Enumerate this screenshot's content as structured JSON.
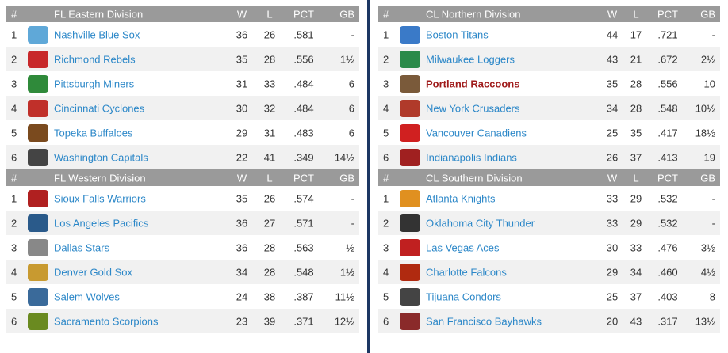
{
  "columns": {
    "rank": "#",
    "w": "W",
    "l": "L",
    "pct": "PCT",
    "gb": "GB"
  },
  "left": [
    {
      "division": "FL Eastern Division",
      "teams": [
        {
          "rank": "1",
          "name": "Nashville Blue Sox",
          "w": "36",
          "l": "26",
          "pct": ".581",
          "gb": "-",
          "logo_color": "#5fa8d8"
        },
        {
          "rank": "2",
          "name": "Richmond Rebels",
          "w": "35",
          "l": "28",
          "pct": ".556",
          "gb": "1½",
          "logo_color": "#c8282a"
        },
        {
          "rank": "3",
          "name": "Pittsburgh Miners",
          "w": "31",
          "l": "33",
          "pct": ".484",
          "gb": "6",
          "logo_color": "#2f8a3a"
        },
        {
          "rank": "4",
          "name": "Cincinnati Cyclones",
          "w": "30",
          "l": "32",
          "pct": ".484",
          "gb": "6",
          "logo_color": "#c0302a"
        },
        {
          "rank": "5",
          "name": "Topeka Buffaloes",
          "w": "29",
          "l": "31",
          "pct": ".483",
          "gb": "6",
          "logo_color": "#7a4a1e"
        },
        {
          "rank": "6",
          "name": "Washington Capitals",
          "w": "22",
          "l": "41",
          "pct": ".349",
          "gb": "14½",
          "logo_color": "#444444"
        }
      ]
    },
    {
      "division": "FL Western Division",
      "teams": [
        {
          "rank": "1",
          "name": "Sioux Falls Warriors",
          "w": "35",
          "l": "26",
          "pct": ".574",
          "gb": "-",
          "logo_color": "#b02020"
        },
        {
          "rank": "2",
          "name": "Los Angeles Pacifics",
          "w": "36",
          "l": "27",
          "pct": ".571",
          "gb": "-",
          "logo_color": "#2a5a8a"
        },
        {
          "rank": "3",
          "name": "Dallas Stars",
          "w": "36",
          "l": "28",
          "pct": ".563",
          "gb": "½",
          "logo_color": "#888888"
        },
        {
          "rank": "4",
          "name": "Denver Gold Sox",
          "w": "34",
          "l": "28",
          "pct": ".548",
          "gb": "1½",
          "logo_color": "#c89a30"
        },
        {
          "rank": "5",
          "name": "Salem Wolves",
          "w": "24",
          "l": "38",
          "pct": ".387",
          "gb": "11½",
          "logo_color": "#3a6a9a"
        },
        {
          "rank": "6",
          "name": "Sacramento Scorpions",
          "w": "23",
          "l": "39",
          "pct": ".371",
          "gb": "12½",
          "logo_color": "#6a8a20"
        }
      ]
    }
  ],
  "right": [
    {
      "division": "CL Northern Division",
      "teams": [
        {
          "rank": "1",
          "name": "Boston Titans",
          "w": "44",
          "l": "17",
          "pct": ".721",
          "gb": "-",
          "logo_color": "#3a7ac8",
          "highlight": false
        },
        {
          "rank": "2",
          "name": "Milwaukee Loggers",
          "w": "43",
          "l": "21",
          "pct": ".672",
          "gb": "2½",
          "logo_color": "#2a8a4a",
          "highlight": false
        },
        {
          "rank": "3",
          "name": "Portland Raccoons",
          "w": "35",
          "l": "28",
          "pct": ".556",
          "gb": "10",
          "logo_color": "#7a5a3a",
          "highlight": true
        },
        {
          "rank": "4",
          "name": "New York Crusaders",
          "w": "34",
          "l": "28",
          "pct": ".548",
          "gb": "10½",
          "logo_color": "#b03a2a",
          "highlight": false
        },
        {
          "rank": "5",
          "name": "Vancouver Canadiens",
          "w": "25",
          "l": "35",
          "pct": ".417",
          "gb": "18½",
          "logo_color": "#d02020",
          "highlight": false
        },
        {
          "rank": "6",
          "name": "Indianapolis Indians",
          "w": "26",
          "l": "37",
          "pct": ".413",
          "gb": "19",
          "logo_color": "#a02020",
          "highlight": false
        }
      ]
    },
    {
      "division": "CL Southern Division",
      "teams": [
        {
          "rank": "1",
          "name": "Atlanta Knights",
          "w": "33",
          "l": "29",
          "pct": ".532",
          "gb": "-",
          "logo_color": "#e09020",
          "highlight": false
        },
        {
          "rank": "2",
          "name": "Oklahoma City Thunder",
          "w": "33",
          "l": "29",
          "pct": ".532",
          "gb": "-",
          "logo_color": "#333333",
          "highlight": false
        },
        {
          "rank": "3",
          "name": "Las Vegas Aces",
          "w": "30",
          "l": "33",
          "pct": ".476",
          "gb": "3½",
          "logo_color": "#c02020",
          "highlight": false
        },
        {
          "rank": "4",
          "name": "Charlotte Falcons",
          "w": "29",
          "l": "34",
          "pct": ".460",
          "gb": "4½",
          "logo_color": "#b02a10",
          "highlight": false
        },
        {
          "rank": "5",
          "name": "Tijuana Condors",
          "w": "25",
          "l": "37",
          "pct": ".403",
          "gb": "8",
          "logo_color": "#444444",
          "highlight": false
        },
        {
          "rank": "6",
          "name": "San Francisco Bayhawks",
          "w": "20",
          "l": "43",
          "pct": ".317",
          "gb": "13½",
          "logo_color": "#8a2a2a",
          "highlight": false
        }
      ]
    }
  ]
}
